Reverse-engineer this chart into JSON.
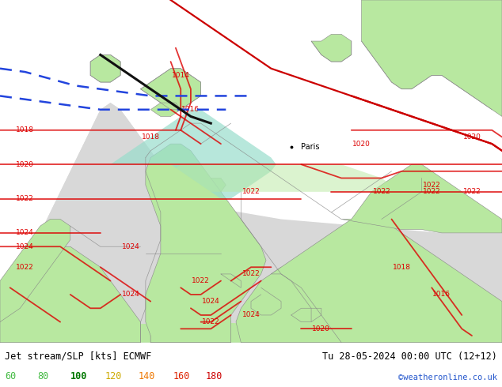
{
  "bottom_left_text": "Jet stream/SLP [kts] ECMWF",
  "bottom_right_text": "Tu 28-05-2024 00:00 UTC (12+12)",
  "bottom_right_text2": "©weatheronline.co.uk",
  "legend_values": [
    "60",
    "80",
    "100",
    "120",
    "140",
    "160",
    "180"
  ],
  "legend_colors": [
    "#44bb44",
    "#44bb44",
    "#007700",
    "#ccaa00",
    "#ee7700",
    "#dd2200",
    "#cc0000"
  ],
  "legend_weights": [
    "normal",
    "normal",
    "bold",
    "normal",
    "normal",
    "normal",
    "normal"
  ],
  "sea_color": "#88ccbb",
  "fig_bg": "#ffffff",
  "land_green_light": "#b8e8a0",
  "land_green_mid": "#a0d888",
  "land_sea_teal": "#99ddcc",
  "gray_land": "#d8d8d8",
  "isobar_color": "#dd0000",
  "jet_blue": "#2244dd",
  "jet_black": "#111111",
  "coast_color": "#888888",
  "figwidth": 6.34,
  "figheight": 4.9,
  "dpi": 100
}
